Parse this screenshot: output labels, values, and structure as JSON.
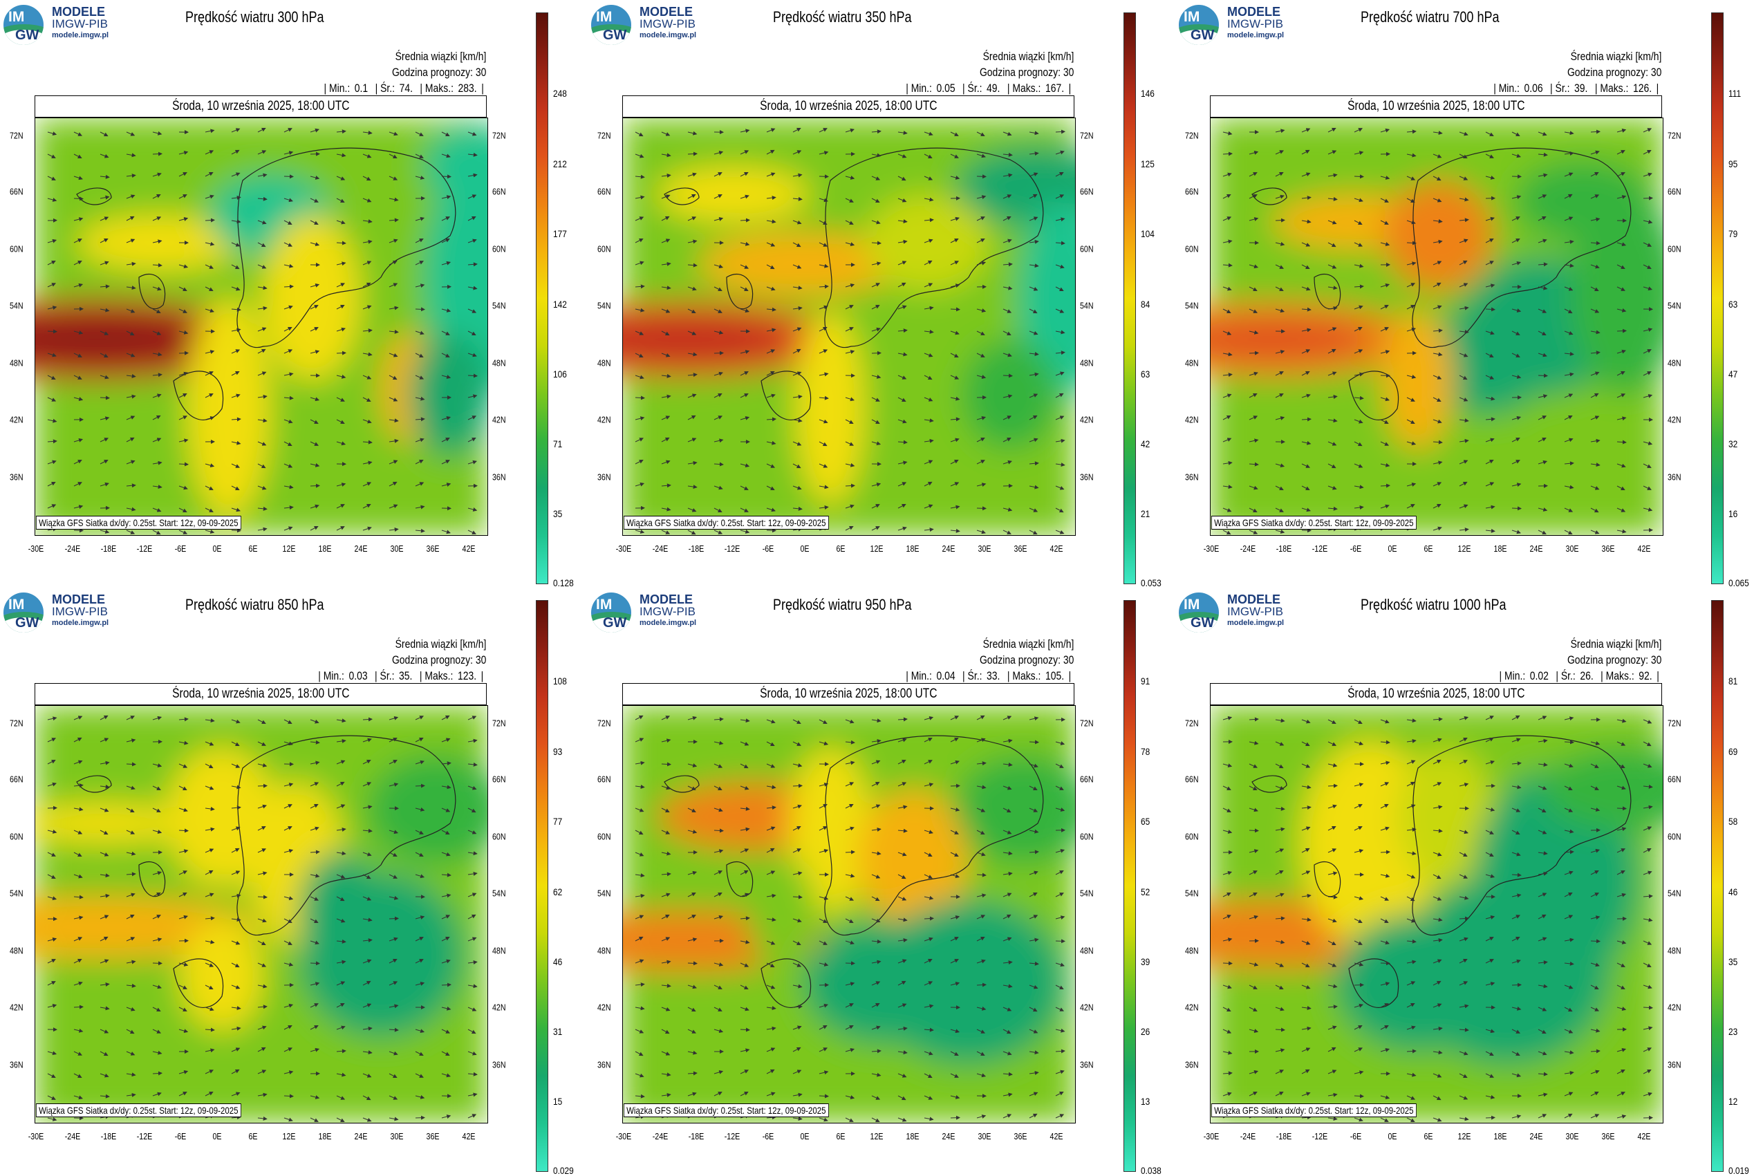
{
  "logo": {
    "badge_top": "IM",
    "badge_bottom": "GW",
    "line1": "MODELE",
    "line2": "IMGW-PIB",
    "line3": "modele.imgw.pl"
  },
  "common": {
    "units_label": "Średnia wiązki [km/h]",
    "forecast_hour": "Godzina prognozy: 30",
    "date": "Środa, 10 września 2025, 18:00 UTC",
    "footer": "Wiązka GFS Siatka dx/dy: 0.25st. Start: 12z, 09-09-2025",
    "min_label": "| Min.:",
    "avg_label": "| Śr.:",
    "max_label": "| Maks.:",
    "x_ticks": [
      "-30E",
      "-24E",
      "-18E",
      "-12E",
      "-6E",
      "0E",
      "6E",
      "12E",
      "18E",
      "24E",
      "30E",
      "36E",
      "42E"
    ],
    "y_ticks": [
      "72N",
      "66N",
      "60N",
      "54N",
      "48N",
      "42N",
      "36N"
    ]
  },
  "colormap": [
    "#3ee8c4",
    "#1fc48f",
    "#18a86c",
    "#35b33e",
    "#7cc71d",
    "#c8d808",
    "#f1de08",
    "#f4b10c",
    "#ee8212",
    "#e0531a",
    "#c3331a",
    "#8e1f12",
    "#5a1008"
  ],
  "panels": [
    {
      "title": "Prędkość wiatru 300 hPa",
      "min": "0.1",
      "avg": "74.",
      "max": "283.",
      "colorbar_ticks": [
        "248",
        "212",
        "177",
        "142",
        "106",
        "71",
        "35",
        "0.128"
      ]
    },
    {
      "title": "Prędkość wiatru 350 hPa",
      "min": "0.05",
      "avg": "49.",
      "max": "167.",
      "colorbar_ticks": [
        "146",
        "125",
        "104",
        "84",
        "63",
        "42",
        "21",
        "0.053"
      ]
    },
    {
      "title": "Prędkość wiatru 700 hPa",
      "min": "0.06",
      "avg": "39.",
      "max": "126.",
      "colorbar_ticks": [
        "111",
        "95",
        "79",
        "63",
        "47",
        "32",
        "16",
        "0.065"
      ]
    },
    {
      "title": "Prędkość wiatru 850 hPa",
      "min": "0.03",
      "avg": "35.",
      "max": "123.",
      "colorbar_ticks": [
        "108",
        "93",
        "77",
        "62",
        "46",
        "31",
        "15",
        "0.029"
      ]
    },
    {
      "title": "Prędkość wiatru 950 hPa",
      "min": "0.04",
      "avg": "33.",
      "max": "105.",
      "colorbar_ticks": [
        "91",
        "78",
        "65",
        "52",
        "39",
        "26",
        "13",
        "0.038"
      ]
    },
    {
      "title": "Prędkość wiatru 1000 hPa",
      "min": "0.02",
      "avg": "26.",
      "max": "92.",
      "colorbar_ticks": [
        "81",
        "69",
        "58",
        "46",
        "35",
        "23",
        "12",
        "0.019"
      ]
    }
  ]
}
